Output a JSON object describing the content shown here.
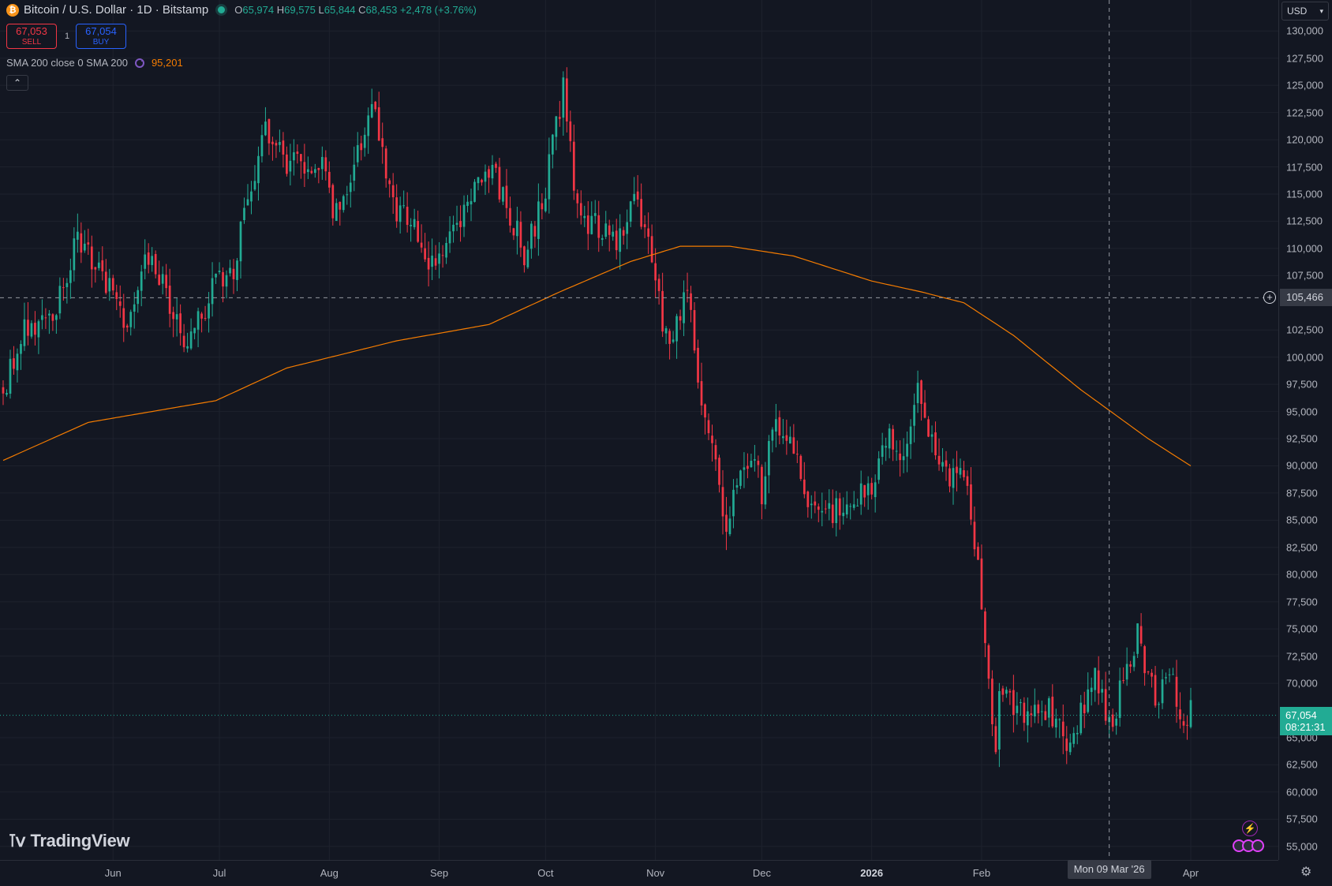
{
  "header": {
    "symbol_icon": "bitcoin-icon",
    "title": "Bitcoin / U.S. Dollar · 1D · Bitstamp",
    "ohlc": {
      "o_label": "O",
      "o": "65,974",
      "h_label": "H",
      "h": "69,575",
      "l_label": "L",
      "l": "65,844",
      "c_label": "C",
      "c": "68,453",
      "change": "+2,478 (+3.76%)"
    }
  },
  "trade": {
    "sell_price": "67,053",
    "sell_label": "SELL",
    "spread": "1",
    "buy_price": "67,054",
    "buy_label": "BUY"
  },
  "indicator": {
    "label": "SMA 200 close 0 SMA 200",
    "value": "95,201"
  },
  "currency": "USD",
  "crosshair": {
    "price": "105,466",
    "date": "Mon 09 Mar '26"
  },
  "last_price": {
    "price": "67,054",
    "countdown": "08:21:31"
  },
  "logo": "TradingView",
  "colors": {
    "background": "#131722",
    "up": "#22ab94",
    "down": "#f23645",
    "sma": "#f57c00",
    "grid": "#1e222d"
  },
  "chart_data": {
    "type": "candlestick",
    "title": "Bitcoin / U.S. Dollar · 1D · Bitstamp",
    "x_tick_labels": [
      "Jun",
      "Jul",
      "Aug",
      "Sep",
      "Oct",
      "Nov",
      "Dec",
      "2026",
      "Feb",
      "Apr"
    ],
    "y_tick_labels": [
      "130,000",
      "127,500",
      "125,000",
      "122,500",
      "120,000",
      "117,500",
      "115,000",
      "112,500",
      "110,000",
      "107,500",
      "102,500",
      "100,000",
      "97,500",
      "95,000",
      "92,500",
      "90,000",
      "87,500",
      "85,000",
      "82,500",
      "80,000",
      "77,500",
      "75,000",
      "72,500",
      "70,000",
      "65,000",
      "62,500",
      "60,000",
      "57,500",
      "55,000"
    ],
    "ylim": [
      53750,
      132850
    ],
    "date_range": [
      "2025-05-01",
      "2026-04-01"
    ],
    "grid": true,
    "close_anchors": [
      {
        "date": "2025-05-01",
        "close": 97000
      },
      {
        "date": "2025-05-07",
        "close": 103000
      },
      {
        "date": "2025-05-15",
        "close": 103500
      },
      {
        "date": "2025-05-22",
        "close": 111000
      },
      {
        "date": "2025-05-28",
        "close": 108000
      },
      {
        "date": "2025-06-05",
        "close": 103000
      },
      {
        "date": "2025-06-10",
        "close": 109500
      },
      {
        "date": "2025-06-18",
        "close": 104500
      },
      {
        "date": "2025-06-22",
        "close": 101000
      },
      {
        "date": "2025-06-30",
        "close": 107000
      },
      {
        "date": "2025-07-05",
        "close": 108000
      },
      {
        "date": "2025-07-10",
        "close": 116000
      },
      {
        "date": "2025-07-14",
        "close": 121000
      },
      {
        "date": "2025-07-20",
        "close": 118000
      },
      {
        "date": "2025-07-30",
        "close": 117500
      },
      {
        "date": "2025-08-02",
        "close": 113500
      },
      {
        "date": "2025-08-08",
        "close": 117000
      },
      {
        "date": "2025-08-13",
        "close": 123000
      },
      {
        "date": "2025-08-20",
        "close": 113500
      },
      {
        "date": "2025-08-24",
        "close": 113000
      },
      {
        "date": "2025-08-30",
        "close": 108500
      },
      {
        "date": "2025-09-05",
        "close": 111000
      },
      {
        "date": "2025-09-12",
        "close": 116000
      },
      {
        "date": "2025-09-17",
        "close": 116500
      },
      {
        "date": "2025-09-25",
        "close": 109500
      },
      {
        "date": "2025-09-30",
        "close": 114000
      },
      {
        "date": "2025-10-06",
        "close": 124500
      },
      {
        "date": "2025-10-10",
        "close": 113000
      },
      {
        "date": "2025-10-15",
        "close": 112000
      },
      {
        "date": "2025-10-20",
        "close": 110500
      },
      {
        "date": "2025-10-27",
        "close": 114500
      },
      {
        "date": "2025-10-31",
        "close": 109500
      },
      {
        "date": "2025-11-04",
        "close": 101500
      },
      {
        "date": "2025-11-10",
        "close": 105500
      },
      {
        "date": "2025-11-14",
        "close": 96000
      },
      {
        "date": "2025-11-21",
        "close": 85000
      },
      {
        "date": "2025-11-26",
        "close": 91000
      },
      {
        "date": "2025-11-30",
        "close": 91000
      },
      {
        "date": "2025-12-01",
        "close": 86000
      },
      {
        "date": "2025-12-03",
        "close": 93500
      },
      {
        "date": "2025-12-09",
        "close": 92500
      },
      {
        "date": "2025-12-15",
        "close": 86000
      },
      {
        "date": "2025-12-18",
        "close": 85500
      },
      {
        "date": "2025-12-31",
        "close": 87500
      },
      {
        "date": "2026-01-05",
        "close": 93000
      },
      {
        "date": "2026-01-10",
        "close": 90500
      },
      {
        "date": "2026-01-14",
        "close": 96500
      },
      {
        "date": "2026-01-20",
        "close": 89500
      },
      {
        "date": "2026-01-28",
        "close": 89000
      },
      {
        "date": "2026-02-01",
        "close": 78000
      },
      {
        "date": "2026-02-05",
        "close": 63000
      },
      {
        "date": "2026-02-06",
        "close": 70500
      },
      {
        "date": "2026-02-12",
        "close": 67000
      },
      {
        "date": "2026-02-20",
        "close": 67500
      },
      {
        "date": "2026-02-25",
        "close": 64500
      },
      {
        "date": "2026-03-01",
        "close": 67000
      },
      {
        "date": "2026-03-05",
        "close": 71500
      },
      {
        "date": "2026-03-09",
        "close": 66000
      },
      {
        "date": "2026-03-15",
        "close": 72000
      },
      {
        "date": "2026-03-17",
        "close": 74500
      },
      {
        "date": "2026-03-22",
        "close": 68500
      },
      {
        "date": "2026-03-27",
        "close": 70000
      },
      {
        "date": "2026-03-30",
        "close": 66000
      },
      {
        "date": "2026-04-01",
        "close": 68453
      }
    ],
    "sma200_anchors": [
      {
        "date": "2025-05-01",
        "value": 90500
      },
      {
        "date": "2025-05-25",
        "value": 94000
      },
      {
        "date": "2025-06-30",
        "value": 96000
      },
      {
        "date": "2025-07-20",
        "value": 99000
      },
      {
        "date": "2025-08-20",
        "value": 101500
      },
      {
        "date": "2025-09-15",
        "value": 103000
      },
      {
        "date": "2025-10-05",
        "value": 106000
      },
      {
        "date": "2025-10-25",
        "value": 108800
      },
      {
        "date": "2025-11-08",
        "value": 110200
      },
      {
        "date": "2025-11-22",
        "value": 110200
      },
      {
        "date": "2025-12-10",
        "value": 109300
      },
      {
        "date": "2026-01-01",
        "value": 107000
      },
      {
        "date": "2026-01-15",
        "value": 106000
      },
      {
        "date": "2026-01-27",
        "value": 105000
      },
      {
        "date": "2026-02-10",
        "value": 102000
      },
      {
        "date": "2026-03-01",
        "value": 97000
      },
      {
        "date": "2026-03-20",
        "value": 92500
      },
      {
        "date": "2026-04-01",
        "value": 90000
      }
    ]
  }
}
